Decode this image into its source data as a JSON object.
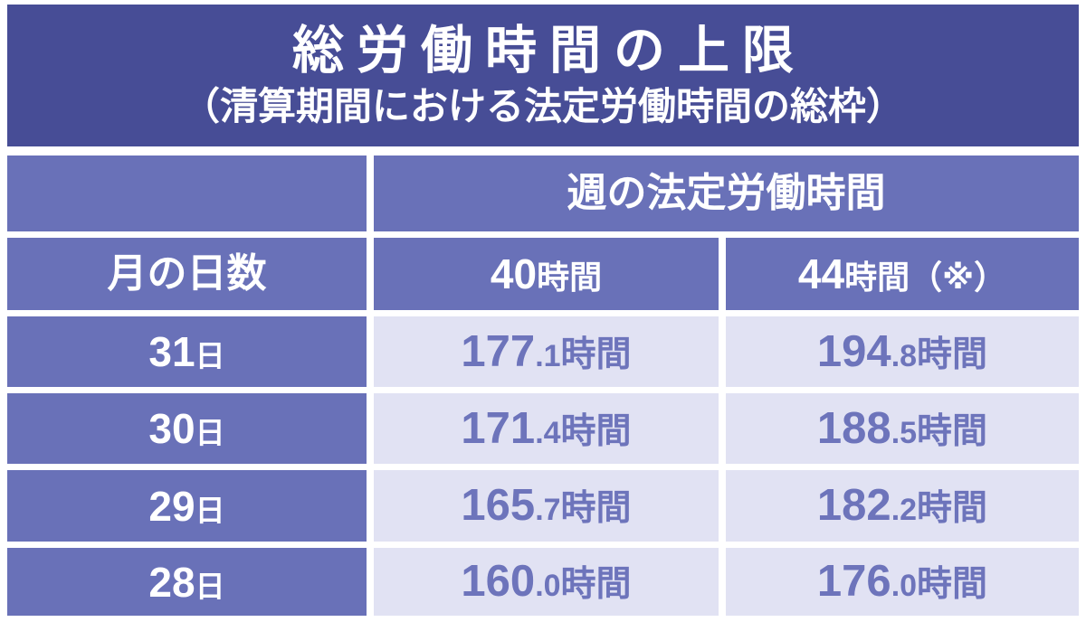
{
  "banner": {
    "title": "総労働時間の上限",
    "subtitle": "（清算期間における法定労働時間の総枠）"
  },
  "table": {
    "group_header": "週の法定労働時間",
    "row_header_label": "月の日数",
    "col_headers": [
      {
        "num": "40",
        "unit": "時間"
      },
      {
        "num": "44",
        "unit": "時間（※）"
      }
    ],
    "rows": [
      {
        "days": {
          "num": "31",
          "unit": "日"
        },
        "w40": {
          "int": "177",
          "dec": ".1",
          "unit": "時間"
        },
        "w44": {
          "int": "194",
          "dec": ".8",
          "unit": "時間"
        }
      },
      {
        "days": {
          "num": "30",
          "unit": "日"
        },
        "w40": {
          "int": "171",
          "dec": ".4",
          "unit": "時間"
        },
        "w44": {
          "int": "188",
          "dec": ".5",
          "unit": "時間"
        }
      },
      {
        "days": {
          "num": "29",
          "unit": "日"
        },
        "w40": {
          "int": "165",
          "dec": ".7",
          "unit": "時間"
        },
        "w44": {
          "int": "182",
          "dec": ".2",
          "unit": "時間"
        }
      },
      {
        "days": {
          "num": "28",
          "unit": "日"
        },
        "w40": {
          "int": "160",
          "dec": ".0",
          "unit": "時間"
        },
        "w44": {
          "int": "176",
          "dec": ".0",
          "unit": "時間"
        }
      }
    ]
  },
  "colors": {
    "banner_bg": "#474d96",
    "header_bg": "#6971b8",
    "cell_bg": "#e1e2f3",
    "cell_text": "#6d74bb",
    "header_text": "#ffffff",
    "gutter": "#ffffff"
  },
  "chart_data": {
    "type": "table",
    "title": "総労働時間の上限",
    "subtitle": "（清算期間における法定労働時間の総枠）",
    "column_group_header": "週の法定労働時間",
    "columns": [
      "月の日数",
      "40時間",
      "44時間（※）"
    ],
    "rows": [
      [
        "31日",
        "177.1時間",
        "194.8時間"
      ],
      [
        "30日",
        "171.4時間",
        "188.5時間"
      ],
      [
        "29日",
        "165.7時間",
        "182.2時間"
      ],
      [
        "28日",
        "160.0時間",
        "176.0時間"
      ]
    ],
    "values_numeric": {
      "month_days": [
        31,
        30,
        29,
        28
      ],
      "weekly_40h_limit_hours": [
        177.1,
        171.4,
        165.7,
        160.0
      ],
      "weekly_44h_limit_hours": [
        194.8,
        188.5,
        182.2,
        176.0
      ]
    }
  }
}
